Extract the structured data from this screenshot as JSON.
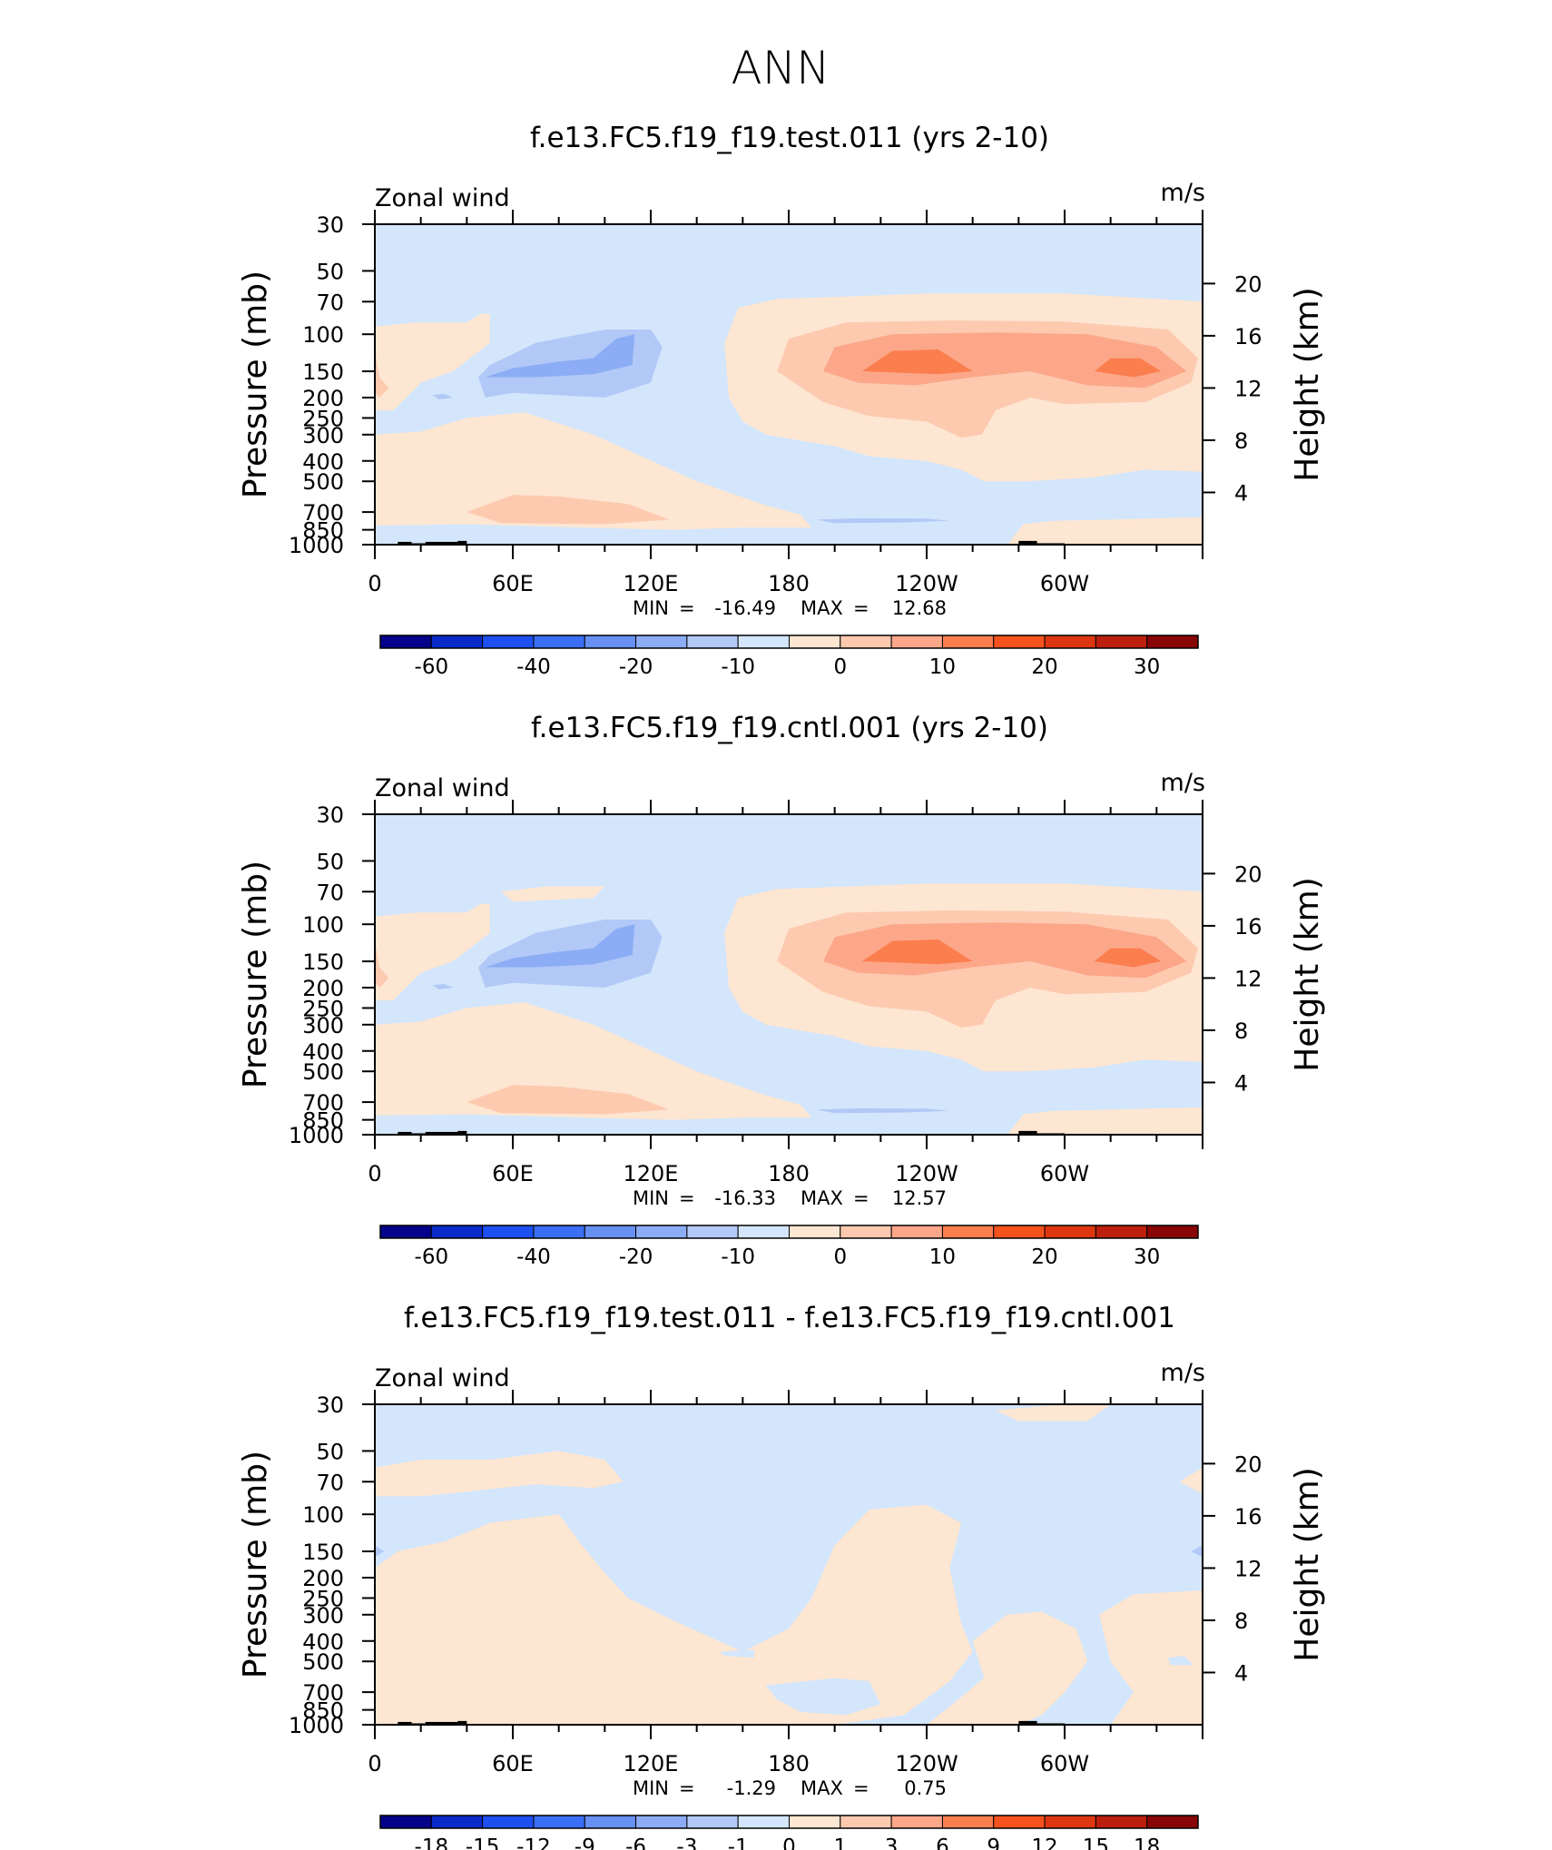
{
  "figure": {
    "main_title": "ANN"
  },
  "chart_data": [
    {
      "type": "contour",
      "title": "f.e13.FC5.f19_f19.test.011 (yrs 2-10)",
      "variable_label": "Zonal wind",
      "units": "m/s",
      "ylabel_left": "Pressure (mb)",
      "ylabel_right": "Height (km)",
      "x_ticks": [
        "0",
        "60E",
        "120E",
        "180",
        "120W",
        "60W"
      ],
      "y_ticks_left": [
        "30",
        "50",
        "70",
        "100",
        "150",
        "200",
        "250",
        "300",
        "400",
        "500",
        "700",
        "850",
        "1000"
      ],
      "y_ticks_right": [
        "20",
        "16",
        "12",
        "8",
        "4"
      ],
      "min_label": "MIN",
      "max_label": "MAX",
      "min": "-16.49",
      "max": "12.68",
      "colorbar_labels": [
        "-60",
        "-40",
        "-20",
        "-10",
        "0",
        "10",
        "20",
        "30"
      ],
      "colorbar_levels": [
        -70,
        -60,
        -50,
        -40,
        -30,
        -20,
        -15,
        -10,
        -5,
        0,
        5,
        10,
        15,
        20,
        25,
        30
      ],
      "features": [
        {
          "desc": "westerly max",
          "lon": 105,
          "p": 150,
          "value": 12.68
        },
        {
          "desc": "westerly max",
          "lon": 225,
          "p": 150,
          "value": 11
        },
        {
          "desc": "easterly min",
          "lon": 40,
          "p": 150,
          "value": -16.49
        }
      ]
    },
    {
      "type": "contour",
      "title": "f.e13.FC5.f19_f19.cntl.001 (yrs 2-10)",
      "variable_label": "Zonal wind",
      "units": "m/s",
      "ylabel_left": "Pressure (mb)",
      "ylabel_right": "Height (km)",
      "x_ticks": [
        "0",
        "60E",
        "120E",
        "180",
        "120W",
        "60W"
      ],
      "y_ticks_left": [
        "30",
        "50",
        "70",
        "100",
        "150",
        "200",
        "250",
        "300",
        "400",
        "500",
        "700",
        "850",
        "1000"
      ],
      "y_ticks_right": [
        "20",
        "16",
        "12",
        "8",
        "4"
      ],
      "min_label": "MIN",
      "max_label": "MAX",
      "min": "-16.33",
      "max": "12.57",
      "colorbar_labels": [
        "-60",
        "-40",
        "-20",
        "-10",
        "0",
        "10",
        "20",
        "30"
      ],
      "colorbar_levels": [
        -70,
        -60,
        -50,
        -40,
        -30,
        -20,
        -15,
        -10,
        -5,
        0,
        5,
        10,
        15,
        20,
        25,
        30
      ],
      "features": [
        {
          "desc": "westerly max",
          "lon": 105,
          "p": 150,
          "value": 12.57
        },
        {
          "desc": "westerly max",
          "lon": 225,
          "p": 150,
          "value": 11
        },
        {
          "desc": "easterly min",
          "lon": 40,
          "p": 150,
          "value": -16.33
        }
      ]
    },
    {
      "type": "contour",
      "title": "f.e13.FC5.f19_f19.test.011 - f.e13.FC5.f19_f19.cntl.001",
      "variable_label": "Zonal wind",
      "units": "m/s",
      "ylabel_left": "Pressure (mb)",
      "ylabel_right": "Height (km)",
      "x_ticks": [
        "0",
        "60E",
        "120E",
        "180",
        "120W",
        "60W"
      ],
      "y_ticks_left": [
        "30",
        "50",
        "70",
        "100",
        "150",
        "200",
        "250",
        "300",
        "400",
        "500",
        "700",
        "850",
        "1000"
      ],
      "y_ticks_right": [
        "20",
        "16",
        "12",
        "8",
        "4"
      ],
      "min_label": "MIN",
      "max_label": "MAX",
      "min": "-1.29",
      "max": "0.75",
      "colorbar_labels": [
        "-18",
        "-15",
        "-12",
        "-9",
        "-6",
        "-3",
        "-1",
        "0",
        "1",
        "3",
        "6",
        "9",
        "12",
        "15",
        "18"
      ],
      "colorbar_levels": [
        -18,
        -15,
        -12,
        -9,
        -6,
        -3,
        -1,
        0,
        1,
        3,
        6,
        9,
        12,
        15,
        18
      ]
    }
  ],
  "colors": {
    "palette": [
      "#04038a",
      "#0a2bc9",
      "#1e4ff0",
      "#3a6ef5",
      "#6690f2",
      "#8cadf5",
      "#b2c9f7",
      "#d4e6fb",
      "#fde6d2",
      "#fdcab0",
      "#fca789",
      "#fb7e4f",
      "#f6521d",
      "#de3611",
      "#bd1f0f",
      "#880606"
    ],
    "diff_palette": [
      "#04038a",
      "#0a2bc9",
      "#1e4ff0",
      "#3a6ef5",
      "#6690f2",
      "#8cadf5",
      "#b2c9f7",
      "#d4e6fb",
      "#fde6d2",
      "#fdcab0",
      "#fca789",
      "#fb7e4f",
      "#f6521d",
      "#de3611",
      "#bd1f0f",
      "#880606"
    ]
  }
}
